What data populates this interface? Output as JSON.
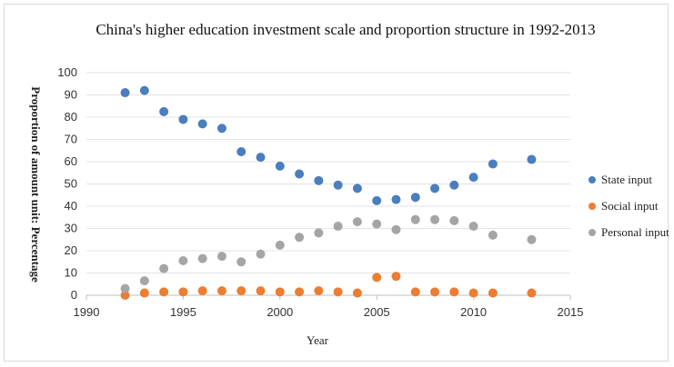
{
  "chart_data": {
    "type": "scatter",
    "title": "China's higher education investment scale and proportion structure in 1992-2013",
    "xlabel": "Year",
    "ylabel": "Proportion of amount  unit: Percentage",
    "xlim": [
      1990,
      2015
    ],
    "ylim": [
      0,
      100
    ],
    "xticks": [
      "1990",
      "1995",
      "2000",
      "2005",
      "2010",
      "2015"
    ],
    "yticks": [
      "0",
      "10",
      "20",
      "30",
      "40",
      "50",
      "60",
      "70",
      "80",
      "90",
      "100"
    ],
    "grid": "horizontal",
    "legend": "right",
    "series": [
      {
        "name": "State input",
        "color": "#4a7ebf",
        "points": [
          [
            1992,
            91
          ],
          [
            1993,
            92
          ],
          [
            1994,
            82.5
          ],
          [
            1995,
            79
          ],
          [
            1996,
            77
          ],
          [
            1997,
            75
          ],
          [
            1998,
            64.5
          ],
          [
            1999,
            62
          ],
          [
            2000,
            58
          ],
          [
            2001,
            54.5
          ],
          [
            2002,
            51.5
          ],
          [
            2003,
            49.5
          ],
          [
            2004,
            48
          ],
          [
            2005,
            42.5
          ],
          [
            2006,
            43
          ],
          [
            2007,
            44
          ],
          [
            2008,
            48
          ],
          [
            2009,
            49.5
          ],
          [
            2010,
            53
          ],
          [
            2011,
            59
          ],
          [
            2013,
            61
          ]
        ]
      },
      {
        "name": "Social input",
        "color": "#ed7d31",
        "points": [
          [
            1992,
            0
          ],
          [
            1993,
            1
          ],
          [
            1994,
            1.5
          ],
          [
            1995,
            1.5
          ],
          [
            1996,
            2
          ],
          [
            1997,
            2
          ],
          [
            1998,
            2
          ],
          [
            1999,
            2
          ],
          [
            2000,
            1.5
          ],
          [
            2001,
            1.5
          ],
          [
            2002,
            2
          ],
          [
            2003,
            1.5
          ],
          [
            2004,
            1
          ],
          [
            2005,
            8
          ],
          [
            2006,
            8.5
          ],
          [
            2007,
            1.5
          ],
          [
            2008,
            1.5
          ],
          [
            2009,
            1.5
          ],
          [
            2010,
            1
          ],
          [
            2011,
            1
          ],
          [
            2013,
            1
          ]
        ]
      },
      {
        "name": "Personal input",
        "color": "#a5a5a5",
        "points": [
          [
            1992,
            3
          ],
          [
            1993,
            6.5
          ],
          [
            1994,
            12
          ],
          [
            1995,
            15.5
          ],
          [
            1996,
            16.5
          ],
          [
            1997,
            17.5
          ],
          [
            1998,
            15
          ],
          [
            1999,
            18.5
          ],
          [
            2000,
            22.5
          ],
          [
            2001,
            26
          ],
          [
            2002,
            28
          ],
          [
            2003,
            31
          ],
          [
            2004,
            33
          ],
          [
            2005,
            32
          ],
          [
            2006,
            29.5
          ],
          [
            2007,
            34
          ],
          [
            2008,
            34
          ],
          [
            2009,
            33.5
          ],
          [
            2010,
            31
          ],
          [
            2011,
            27
          ],
          [
            2013,
            25
          ]
        ]
      }
    ]
  }
}
